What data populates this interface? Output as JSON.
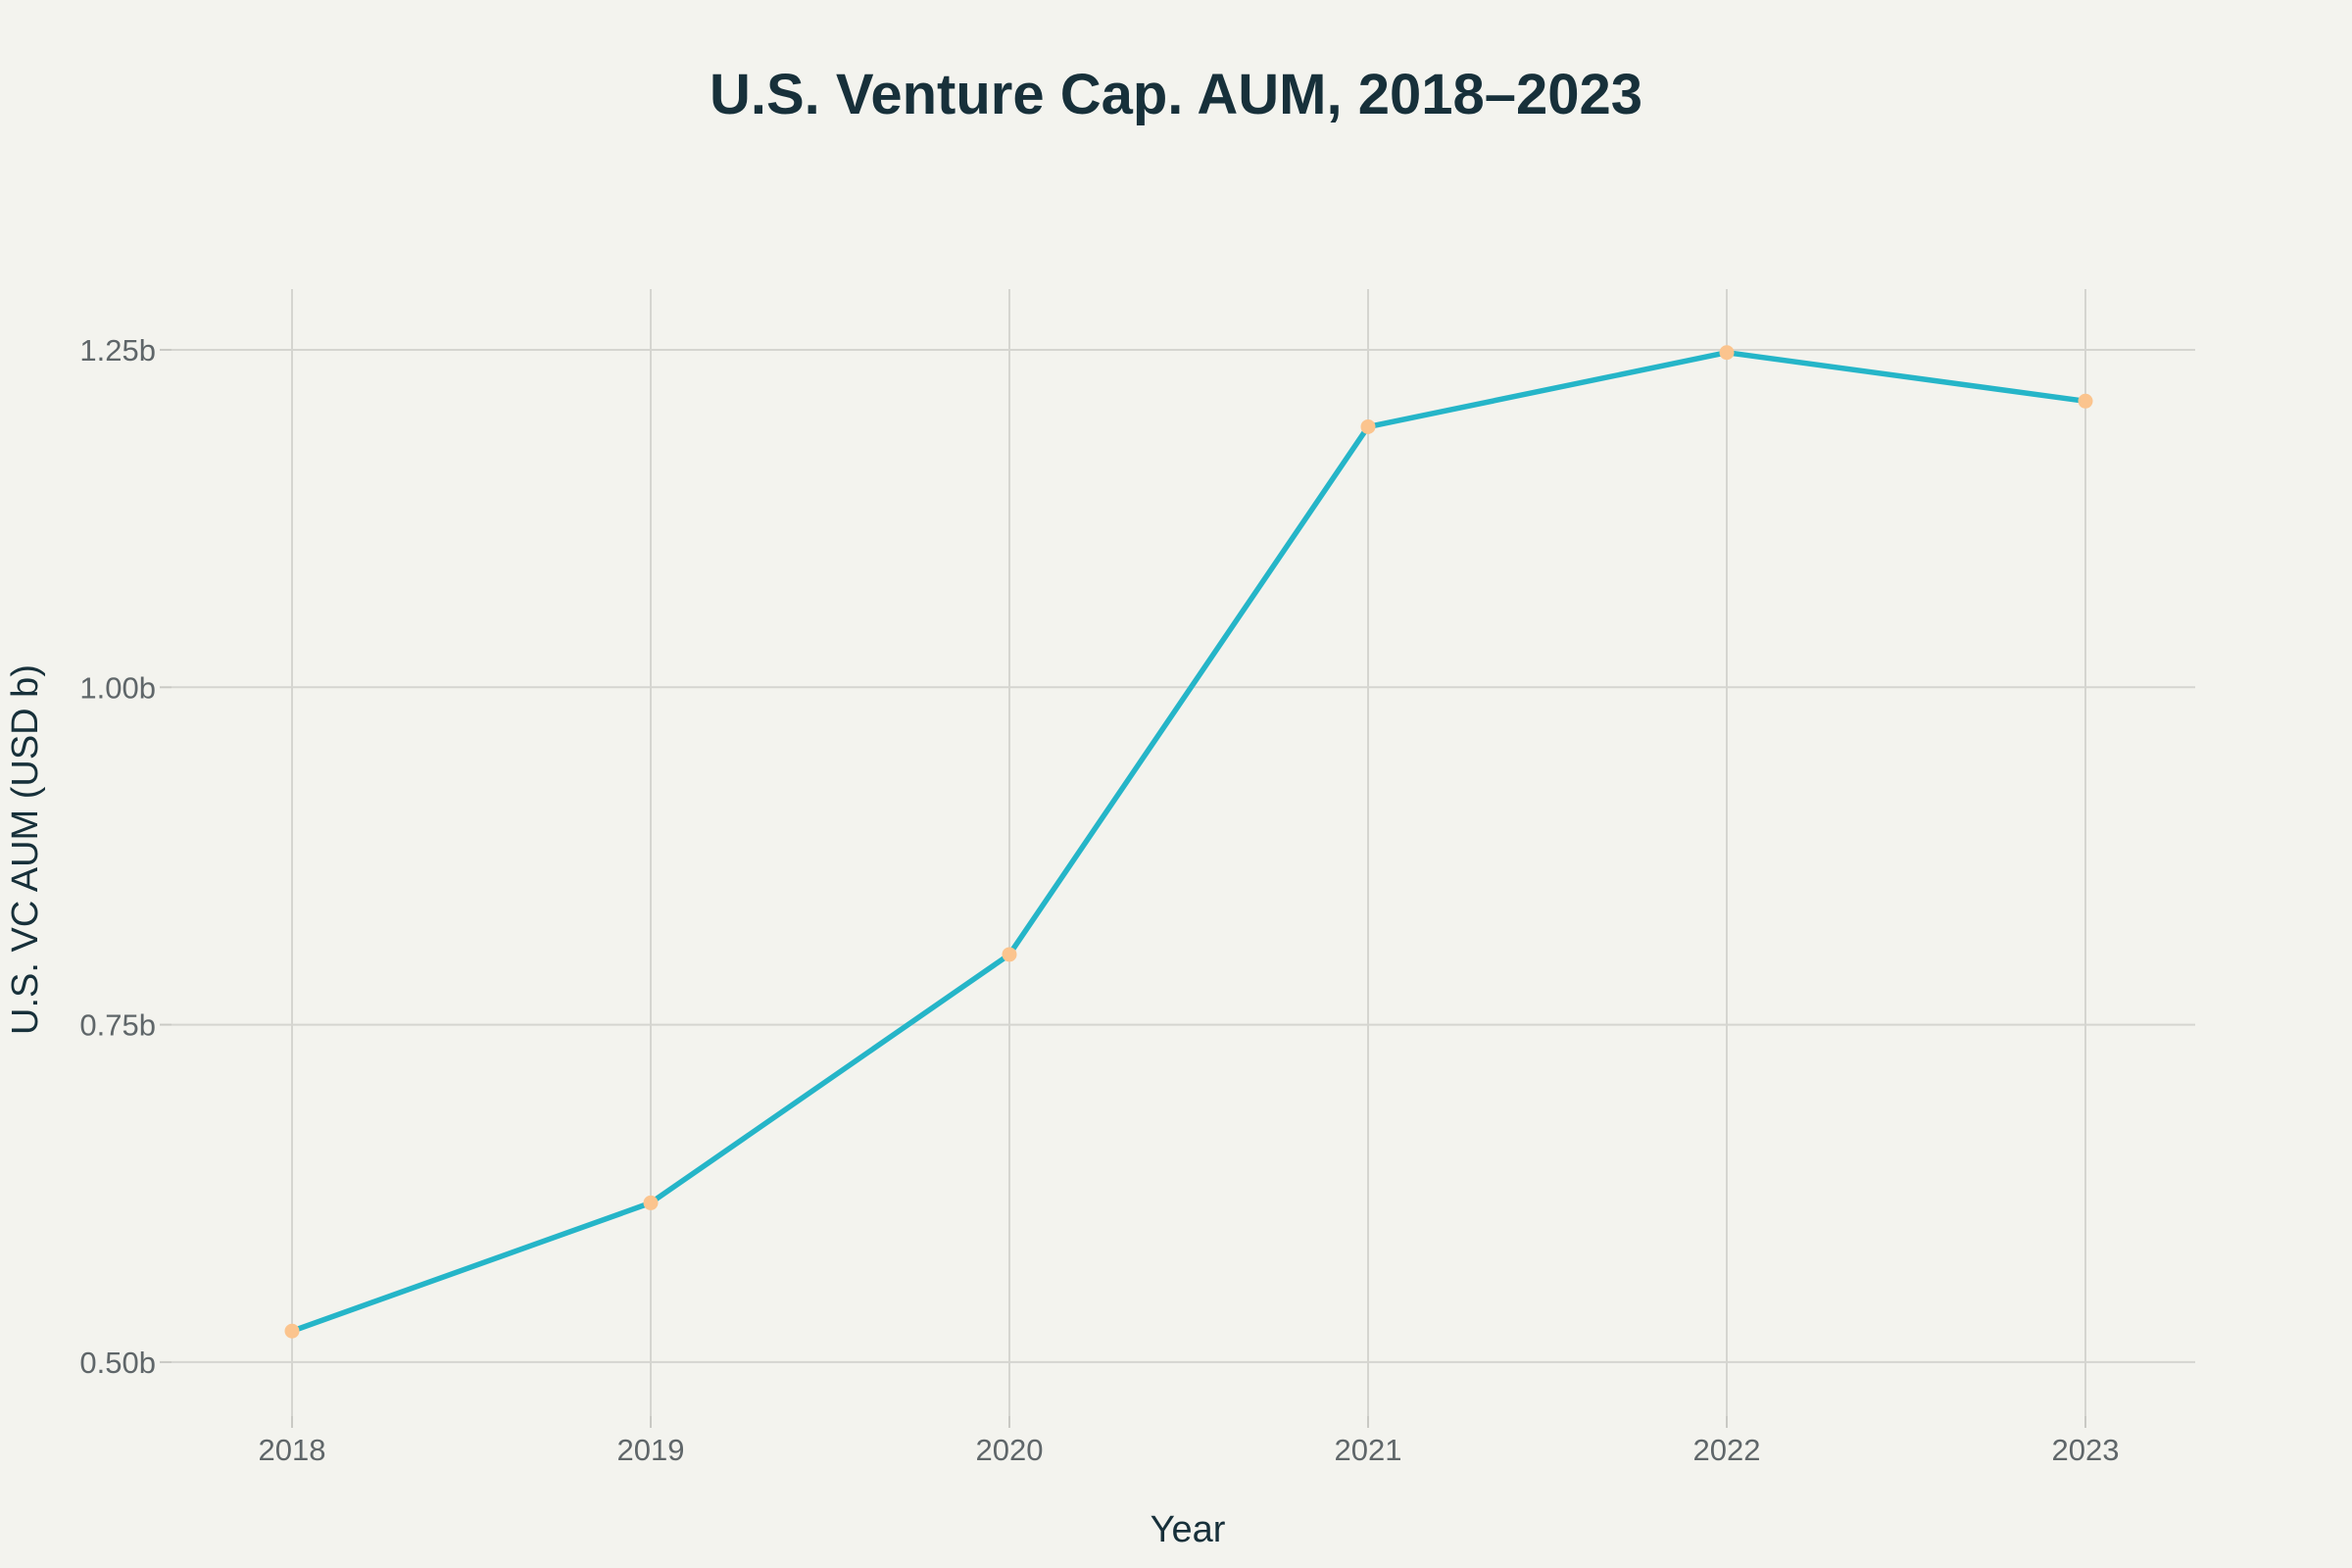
{
  "chart_data": {
    "type": "line",
    "title": "U.S. Venture Cap. AUM, 2018–2023",
    "xlabel": "Year",
    "ylabel": "U.S. VC AUM (USD b)",
    "categories": [
      "2018",
      "2019",
      "2020",
      "2021",
      "2022",
      "2023"
    ],
    "series": [
      {
        "values": [
          0.523,
          0.618,
          0.802,
          1.193,
          1.248,
          1.212
        ]
      }
    ],
    "ylim": [
      0.46,
      1.295
    ],
    "yticks": [
      0.5,
      0.75,
      1.0,
      1.25
    ],
    "ytick_labels": [
      "0.50b",
      "0.75b",
      "1.00b",
      "1.25b"
    ],
    "grid": true,
    "line_color": "#25b5c8",
    "marker_color": "#fbc48e",
    "background_color": "#f3f3ee"
  }
}
